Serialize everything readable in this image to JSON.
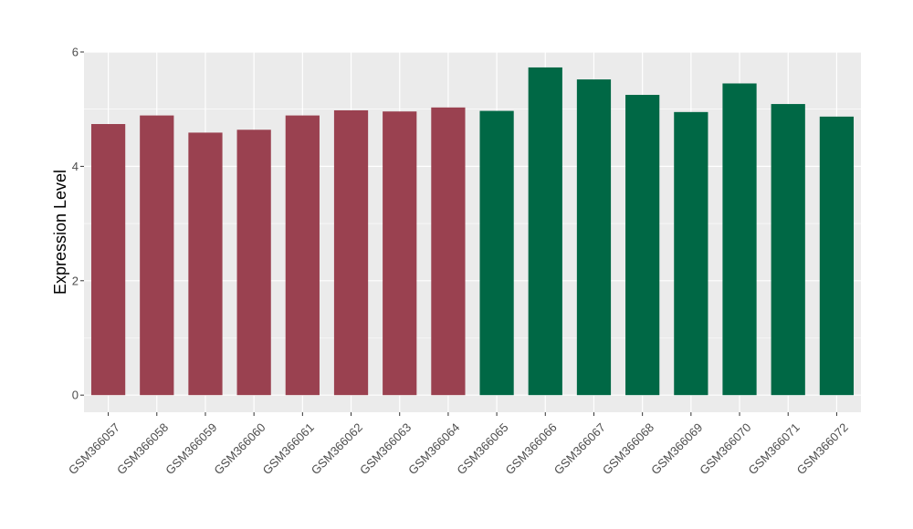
{
  "chart_data": {
    "type": "bar",
    "title": "",
    "xlabel": "",
    "ylabel": "Expression Level",
    "ylim": [
      -0.3,
      6.0
    ],
    "yticks": [
      0,
      2,
      4,
      6
    ],
    "grid": true,
    "legend": "none",
    "categories": [
      "GSM366057",
      "GSM366058",
      "GSM366059",
      "GSM366060",
      "GSM366061",
      "GSM366062",
      "GSM366063",
      "GSM366064",
      "GSM366065",
      "GSM366066",
      "GSM366067",
      "GSM366068",
      "GSM366069",
      "GSM366070",
      "GSM366071",
      "GSM366072"
    ],
    "values": [
      4.74,
      4.89,
      4.59,
      4.64,
      4.89,
      4.98,
      4.96,
      5.03,
      4.97,
      5.73,
      5.52,
      5.25,
      4.95,
      5.45,
      5.09,
      4.87
    ],
    "groups": [
      "red",
      "red",
      "red",
      "red",
      "red",
      "red",
      "red",
      "red",
      "green",
      "green",
      "green",
      "green",
      "green",
      "green",
      "green",
      "green"
    ],
    "colors": {
      "red": "#9a4150",
      "green": "#006845",
      "panel": "#ebebeb",
      "grid": "#ffffff"
    }
  }
}
